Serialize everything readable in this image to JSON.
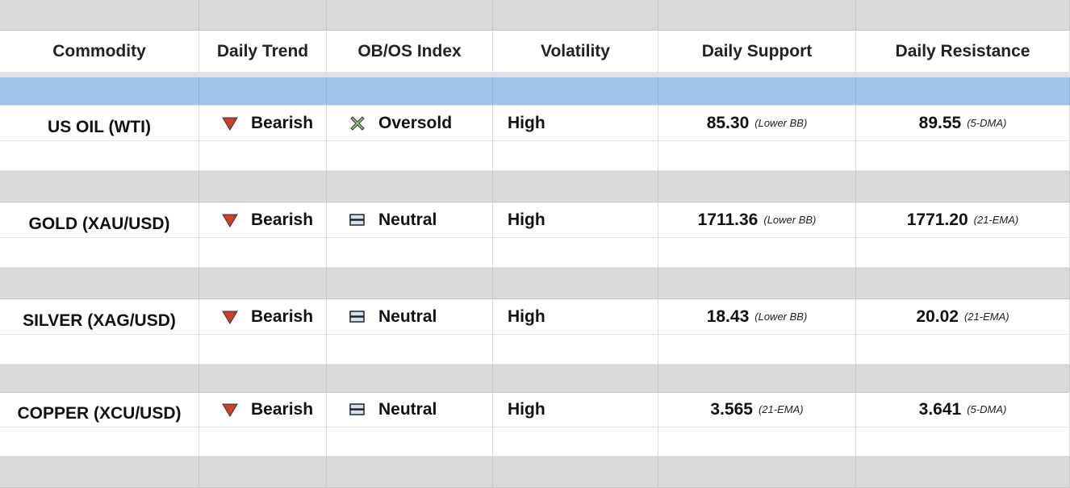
{
  "headers": [
    "Commodity",
    "Daily Trend",
    "OB/OS Index",
    "Volatility",
    "Daily Support",
    "Daily Resistance"
  ],
  "colors": {
    "bearish": "#cc4125",
    "oversold": "#93c47d",
    "neutral": "#cfe2f3",
    "band": "#9fc5e8",
    "grey": "#d9d9d9"
  },
  "rows": [
    {
      "commodity": "US OIL (WTI)",
      "trend": "Bearish",
      "trend_icon": "triangle-down-icon",
      "index": "Oversold",
      "index_icon": "x-icon",
      "volatility": "High",
      "support": "85.30",
      "support_note": "(Lower BB)",
      "resistance": "89.55",
      "resistance_note": "(5-DMA)"
    },
    {
      "commodity": "GOLD (XAU/USD)",
      "trend": "Bearish",
      "trend_icon": "triangle-down-icon",
      "index": "Neutral",
      "index_icon": "equals-icon",
      "volatility": "High",
      "support": "1711.36",
      "support_note": "(Lower BB)",
      "resistance": "1771.20",
      "resistance_note": "(21-EMA)"
    },
    {
      "commodity": "SILVER (XAG/USD)",
      "trend": "Bearish",
      "trend_icon": "triangle-down-icon",
      "index": "Neutral",
      "index_icon": "equals-icon",
      "volatility": "High",
      "support": "18.43",
      "support_note": "(Lower BB)",
      "resistance": "20.02",
      "resistance_note": "(21-EMA)"
    },
    {
      "commodity": "COPPER (XCU/USD)",
      "trend": "Bearish",
      "trend_icon": "triangle-down-icon",
      "index": "Neutral",
      "index_icon": "equals-icon",
      "volatility": "High",
      "support": "3.565",
      "support_note": "(21-EMA)",
      "resistance": "3.641",
      "resistance_note": "(5-DMA)"
    }
  ]
}
